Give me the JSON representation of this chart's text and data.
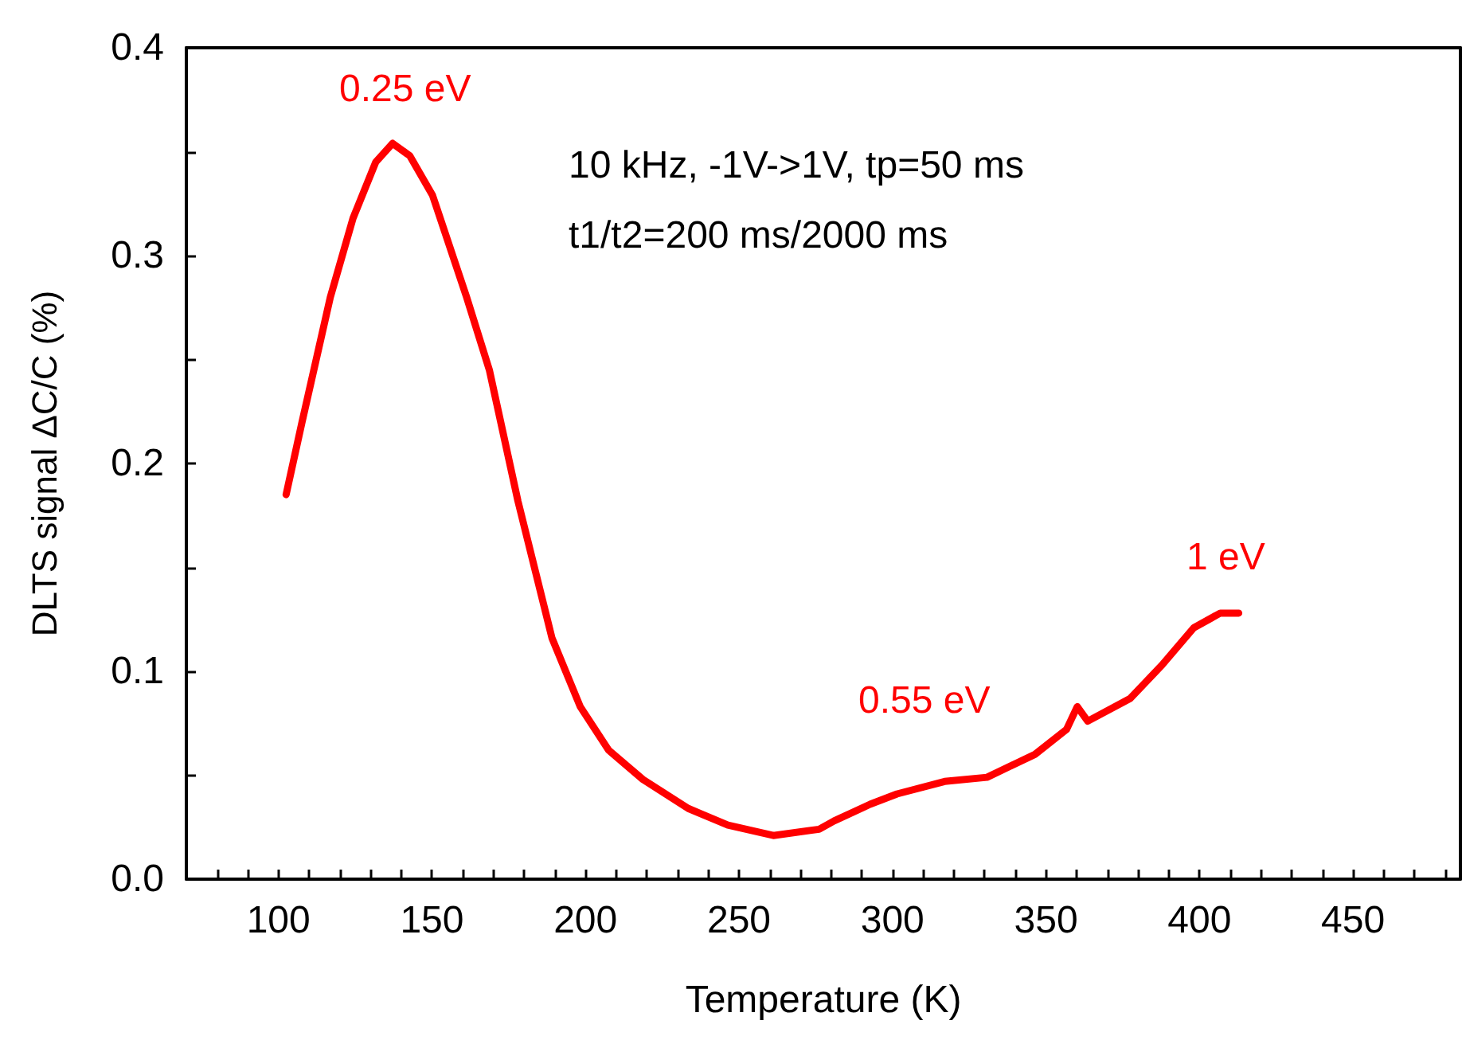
{
  "chart_data": {
    "type": "line",
    "xlabel": "Temperature (K)",
    "ylabel": "DLTS signal ΔC/C (%)",
    "xlim": [
      70,
      485
    ],
    "ylim": [
      0,
      0.4
    ],
    "xticks": [
      {
        "value": 80,
        "label": null
      },
      {
        "value": 90,
        "label": null
      },
      100,
      {
        "value": 110,
        "label": null
      },
      {
        "value": 120,
        "label": null
      },
      {
        "value": 130,
        "label": null
      },
      {
        "value": 140,
        "label": null
      },
      150,
      {
        "value": 160,
        "label": null
      },
      {
        "value": 170,
        "label": null
      },
      {
        "value": 180,
        "label": null
      },
      {
        "value": 190,
        "label": null
      },
      200,
      {
        "value": 210,
        "label": null
      },
      {
        "value": 220,
        "label": null
      },
      {
        "value": 230,
        "label": null
      },
      {
        "value": 240,
        "label": null
      },
      250,
      {
        "value": 260,
        "label": null
      },
      {
        "value": 270,
        "label": null
      },
      {
        "value": 280,
        "label": null
      },
      {
        "value": 290,
        "label": null
      },
      300,
      {
        "value": 310,
        "label": null
      },
      {
        "value": 320,
        "label": null
      },
      {
        "value": 330,
        "label": null
      },
      {
        "value": 340,
        "label": null
      },
      350,
      {
        "value": 360,
        "label": null
      },
      {
        "value": 370,
        "label": null
      },
      {
        "value": 380,
        "label": null
      },
      {
        "value": 390,
        "label": null
      },
      400,
      {
        "value": 410,
        "label": null
      },
      {
        "value": 420,
        "label": null
      },
      {
        "value": 430,
        "label": null
      },
      {
        "value": 440,
        "label": null
      },
      450,
      {
        "value": 460,
        "label": null
      },
      {
        "value": 470,
        "label": null
      },
      {
        "value": 480,
        "label": null
      }
    ],
    "yticks": [
      {
        "value": 0,
        "label": "0.0"
      },
      {
        "value": 0.05,
        "label": null
      },
      {
        "value": 0.1,
        "label": "0.1"
      },
      {
        "value": 0.15,
        "label": null
      },
      {
        "value": 0.2,
        "label": "0.2"
      },
      {
        "value": 0.25,
        "label": null
      },
      {
        "value": 0.3,
        "label": "0.3"
      },
      {
        "value": 0.35,
        "label": null
      },
      {
        "value": 0.4,
        "label": "0.4"
      }
    ],
    "grid": false,
    "marker": "none",
    "line_style": "solid",
    "series": [
      {
        "color": "#ff0000",
        "x": [
          102.5,
          107.7,
          116.9,
          124.3,
          131.7,
          137.2,
          142.8,
          150.2,
          161.3,
          168.7,
          178.0,
          189.1,
          198.3,
          207.6,
          218.7,
          233.5,
          246.4,
          261.2,
          276.1,
          281,
          292.7,
          301.5,
          317,
          330.8,
          346.4,
          356.7,
          360.2,
          363.6,
          377.5,
          387.8,
          398.2,
          406.8,
          412.8
        ],
        "values": [
          0.185,
          0.22,
          0.28,
          0.318,
          0.345,
          0.354,
          0.348,
          0.329,
          0.28,
          0.245,
          0.182,
          0.116,
          0.083,
          0.062,
          0.048,
          0.034,
          0.026,
          0.021,
          0.024,
          0.028,
          0.036,
          0.041,
          0.047,
          0.049,
          0.06,
          0.072,
          0.083,
          0.076,
          0.087,
          0.103,
          0.121,
          0.128,
          0.128
        ]
      }
    ],
    "annotations": [
      "0.25 eV",
      "0.55 eV",
      "1 eV",
      "10 kHz, -1V->1V, tp=50 ms",
      "t1/t2=200 ms/2000 ms"
    ]
  }
}
